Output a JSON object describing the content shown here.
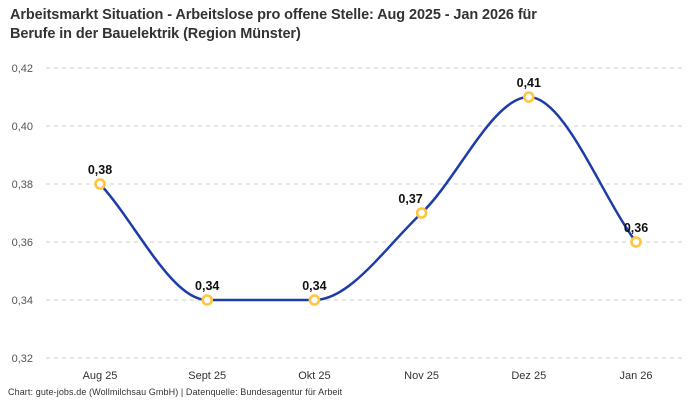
{
  "header": {
    "title_lines": [
      "Arbeitsmarkt Situation - Arbeitslose pro offene Stelle: Aug 2025 - Jan 2026 für",
      "Berufe in der Bauelektrik (Region Münster)"
    ]
  },
  "footer": {
    "credit": "Chart: gute-jobs.de (Wollmilchsau GmbH) | Datenquelle: Bundesagentur für Arbeit"
  },
  "colors": {
    "title_text": "#333333",
    "line": "#1e3ca8",
    "marker_ring": "#ffc53d",
    "marker_fill": "#ffffff",
    "gridline": "#cdcdcd",
    "ytick_text": "#555555",
    "xtick_text": "#333333",
    "point_label_text": "#111111",
    "footer_text": "#333333",
    "background": "#ffffff"
  },
  "chart_data": {
    "type": "line",
    "title": "Arbeitsmarkt Situation - Arbeitslose pro offene Stelle: Aug 2025 - Jan 2026 für Berufe in der Bauelektrik (Region Münster)",
    "categories": [
      "Aug 25",
      "Sept 25",
      "Okt 25",
      "Nov 25",
      "Dez 25",
      "Jan 26"
    ],
    "values": [
      0.38,
      0.34,
      0.34,
      0.37,
      0.41,
      0.36
    ],
    "point_labels": [
      "0,38",
      "0,34",
      "0,34",
      "0,37",
      "0,41",
      "0,36"
    ],
    "yticks": [
      0.32,
      0.34,
      0.36,
      0.38,
      0.4,
      0.42
    ],
    "ytick_labels": [
      "0,32",
      "0,34",
      "0,36",
      "0,38",
      "0,40",
      "0,42"
    ],
    "ylim": [
      0.32,
      0.42
    ],
    "xlabel": "",
    "ylabel": "",
    "legend": "none",
    "grid": "horizontal-dashed",
    "curve": "monotone-spline"
  }
}
